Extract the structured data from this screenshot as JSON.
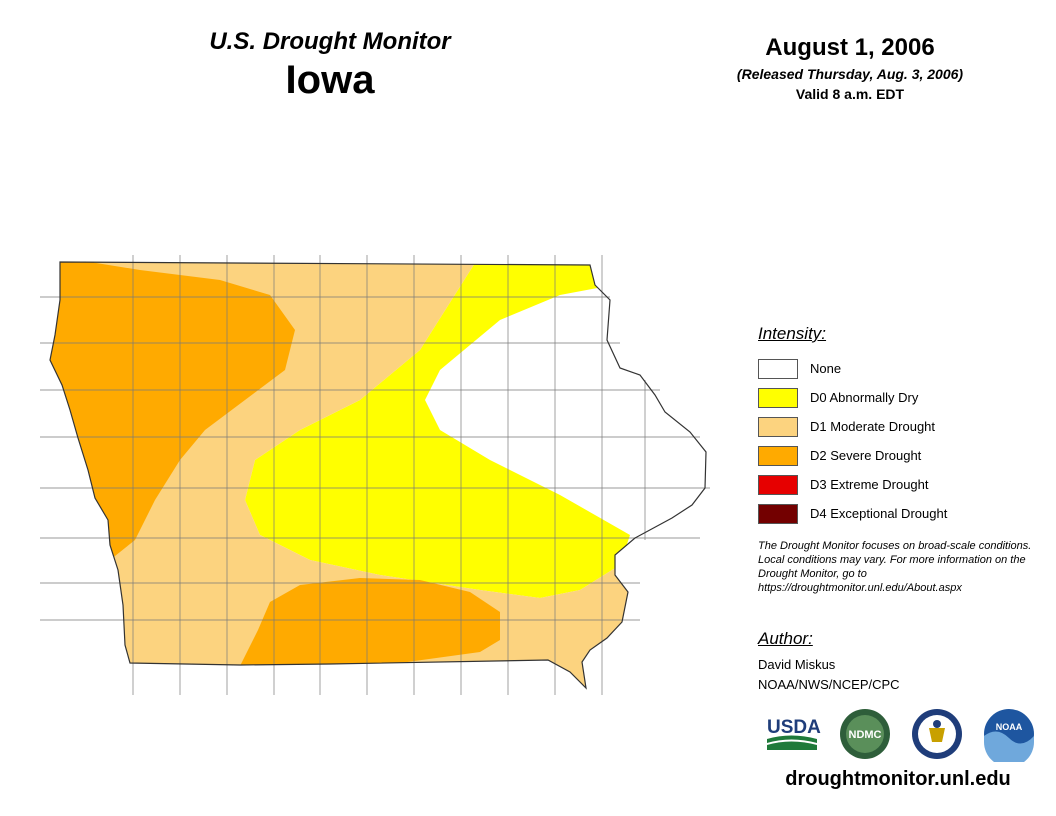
{
  "header": {
    "subtitle": "U.S. Drought Monitor",
    "state": "Iowa",
    "date": "August 1, 2006",
    "released": "(Released Thursday, Aug. 3, 2006)",
    "valid": "Valid 8 a.m. EDT"
  },
  "legend": {
    "heading": "Intensity:",
    "items": [
      {
        "label": "None",
        "color": "#ffffff"
      },
      {
        "label": "D0 Abnormally Dry",
        "color": "#ffff00"
      },
      {
        "label": "D1 Moderate Drought",
        "color": "#fcd37f"
      },
      {
        "label": "D2 Severe Drought",
        "color": "#ffaa00"
      },
      {
        "label": "D3 Extreme Drought",
        "color": "#e60000"
      },
      {
        "label": "D4 Exceptional Drought",
        "color": "#730000"
      }
    ]
  },
  "note": "The Drought Monitor focuses on broad-scale conditions. Local conditions may vary. For more information on the Drought Monitor, go to https://droughtmonitor.unl.edu/About.aspx",
  "author": {
    "heading": "Author:",
    "name": "David Miskus",
    "org": "NOAA/NWS/NCEP/CPC"
  },
  "logos": {
    "usda": "USDA",
    "ndmc": "NDMC",
    "noaa": "NOAA"
  },
  "site_url": "droughtmonitor.unl.edu"
}
